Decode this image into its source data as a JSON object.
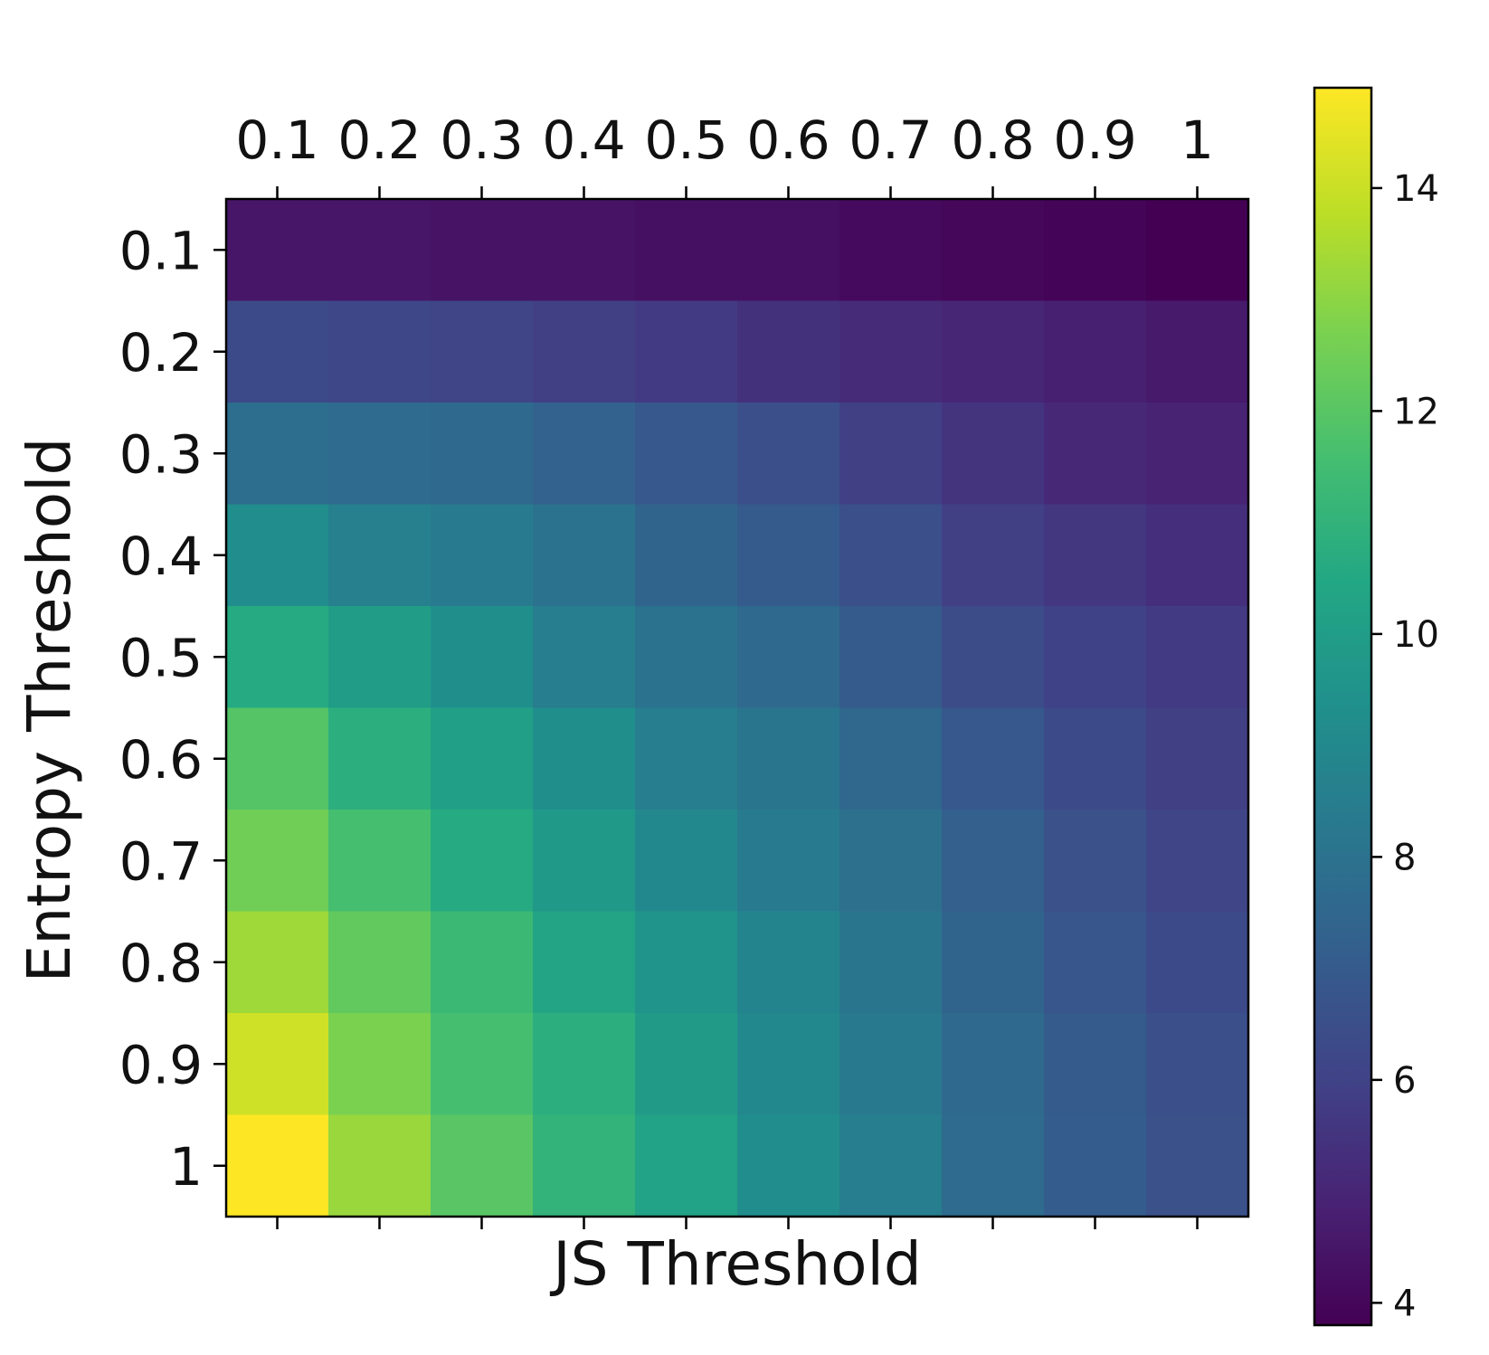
{
  "chart_data": {
    "type": "heatmap",
    "title": "",
    "xlabel": "JS Threshold",
    "ylabel": "Entropy Threshold",
    "x_categories": [
      "0.1",
      "0.2",
      "0.3",
      "0.4",
      "0.5",
      "0.6",
      "0.7",
      "0.8",
      "0.9",
      "1"
    ],
    "y_categories": [
      "0.1",
      "0.2",
      "0.3",
      "0.4",
      "0.5",
      "0.6",
      "0.7",
      "0.8",
      "0.9",
      "1"
    ],
    "x_tick_position": "top",
    "values": [
      [
        4.5,
        4.5,
        4.4,
        4.4,
        4.3,
        4.3,
        4.1,
        4.0,
        3.9,
        3.8
      ],
      [
        6.3,
        6.2,
        6.1,
        5.9,
        5.7,
        5.4,
        5.2,
        5.0,
        4.8,
        4.6
      ],
      [
        7.8,
        7.7,
        7.6,
        7.3,
        6.9,
        6.5,
        5.9,
        5.5,
        5.1,
        4.9
      ],
      [
        9.2,
        8.6,
        8.4,
        8.0,
        7.4,
        7.0,
        6.5,
        5.9,
        5.6,
        5.3
      ],
      [
        10.6,
        10.0,
        9.3,
        8.5,
        8.0,
        7.6,
        7.0,
        6.4,
        6.0,
        5.7
      ],
      [
        11.9,
        10.8,
        10.1,
        9.3,
        8.5,
        8.1,
        7.5,
        6.9,
        6.3,
        5.9
      ],
      [
        12.5,
        11.6,
        10.6,
        9.8,
        9.0,
        8.4,
        7.9,
        7.2,
        6.6,
        6.1
      ],
      [
        13.3,
        12.2,
        11.3,
        10.3,
        9.5,
        8.8,
        8.1,
        7.4,
        6.8,
        6.3
      ],
      [
        14.1,
        12.7,
        11.6,
        10.8,
        9.9,
        9.0,
        8.3,
        7.6,
        7.0,
        6.5
      ],
      [
        14.9,
        13.2,
        12.0,
        11.0,
        10.2,
        9.2,
        8.5,
        7.7,
        7.1,
        6.6
      ]
    ],
    "colormap": "viridis",
    "colorbar": {
      "range": [
        3.8,
        14.9
      ],
      "ticks": [
        4,
        6,
        8,
        10,
        12,
        14
      ],
      "tick_labels": [
        "4",
        "6",
        "8",
        "10",
        "12",
        "14"
      ]
    }
  }
}
